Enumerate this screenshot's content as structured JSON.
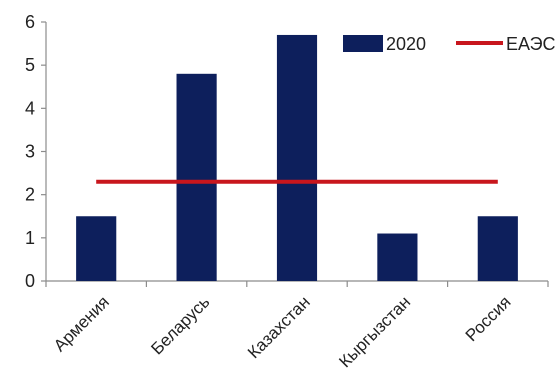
{
  "chart_data": {
    "type": "bar",
    "categories": [
      "Армения",
      "Беларусь",
      "Казахстан",
      "Кыргызстан",
      "Россия"
    ],
    "series": [
      {
        "name": "2020",
        "type": "bar",
        "values": [
          1.5,
          4.8,
          5.7,
          1.1,
          1.5
        ],
        "color": "#0d1f5c"
      },
      {
        "name": "ЕАЭС",
        "type": "line",
        "values": [
          2.3,
          2.3,
          2.3,
          2.3,
          2.3
        ],
        "color": "#c8161d"
      }
    ],
    "yticks": [
      "0",
      "1",
      "2",
      "3",
      "4",
      "5",
      "6"
    ],
    "ylim": [
      0,
      6
    ],
    "grid": false,
    "legend_position": "top-right",
    "title": "",
    "xlabel": "",
    "ylabel": ""
  }
}
